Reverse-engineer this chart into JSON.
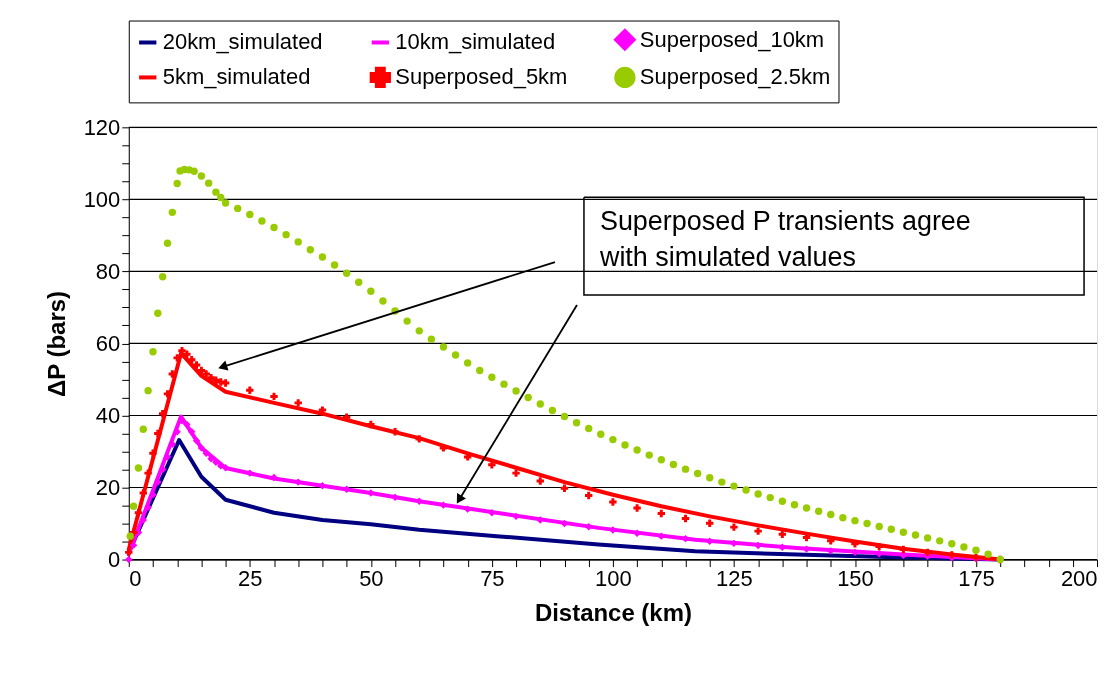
{
  "chart_data": {
    "type": "line",
    "xlabel": "Distance (km)",
    "ylabel": "ΔP (bars)",
    "xlim": [
      0,
      200
    ],
    "ylim": [
      0,
      120
    ],
    "xticks": [
      0,
      {
        "value": 5,
        "label": null
      },
      {
        "value": 10,
        "label": null
      },
      {
        "value": 15,
        "label": null
      },
      {
        "value": 20,
        "label": null
      },
      25,
      {
        "value": 30,
        "label": null
      },
      {
        "value": 35,
        "label": null
      },
      {
        "value": 40,
        "label": null
      },
      {
        "value": 45,
        "label": null
      },
      50,
      {
        "value": 55,
        "label": null
      },
      {
        "value": 60,
        "label": null
      },
      {
        "value": 65,
        "label": null
      },
      {
        "value": 70,
        "label": null
      },
      75,
      {
        "value": 80,
        "label": null
      },
      {
        "value": 85,
        "label": null
      },
      {
        "value": 90,
        "label": null
      },
      {
        "value": 95,
        "label": null
      },
      100,
      {
        "value": 105,
        "label": null
      },
      {
        "value": 110,
        "label": null
      },
      {
        "value": 115,
        "label": null
      },
      {
        "value": 120,
        "label": null
      },
      125,
      {
        "value": 130,
        "label": null
      },
      {
        "value": 135,
        "label": null
      },
      {
        "value": 140,
        "label": null
      },
      {
        "value": 145,
        "label": null
      },
      150,
      {
        "value": 155,
        "label": null
      },
      {
        "value": 160,
        "label": null
      },
      {
        "value": 165,
        "label": null
      },
      {
        "value": 170,
        "label": null
      },
      175,
      {
        "value": 180,
        "label": null
      },
      {
        "value": 185,
        "label": null
      },
      {
        "value": 190,
        "label": null
      },
      {
        "value": 195,
        "label": null
      },
      200
    ],
    "yticks": [
      0,
      {
        "value": 5,
        "label": null
      },
      {
        "value": 10,
        "label": null
      },
      {
        "value": 15,
        "label": null
      },
      20,
      {
        "value": 25,
        "label": null
      },
      {
        "value": 30,
        "label": null
      },
      {
        "value": 35,
        "label": null
      },
      40,
      {
        "value": 45,
        "label": null
      },
      {
        "value": 50,
        "label": null
      },
      {
        "value": 55,
        "label": null
      },
      60,
      {
        "value": 65,
        "label": null
      },
      {
        "value": 70,
        "label": null
      },
      {
        "value": 75,
        "label": null
      },
      80,
      {
        "value": 85,
        "label": null
      },
      {
        "value": 90,
        "label": null
      },
      {
        "value": 95,
        "label": null
      },
      100,
      {
        "value": 105,
        "label": null
      },
      {
        "value": 110,
        "label": null
      },
      {
        "value": 115,
        "label": null
      },
      120
    ],
    "grid": "y",
    "legend": "top",
    "annotations": [
      "Superposed P transients agree\nwith simulated values"
    ],
    "series": [
      {
        "name": "20km_simulated",
        "marker": "none",
        "color": "#000080",
        "x": [
          0,
          10.4,
          15,
          20,
          30,
          40,
          50,
          60,
          76,
          97,
          117,
          138,
          160,
          180
        ],
        "values": [
          2,
          33.2,
          23,
          16.6,
          13,
          11,
          9.8,
          8.3,
          6.5,
          4.2,
          2.3,
          1.4,
          0.6,
          0
        ]
      },
      {
        "name": "10km_simulated",
        "marker": "none",
        "color": "#ff00ff",
        "x": [
          0,
          10.8,
          15,
          20,
          30,
          40,
          50,
          60,
          76,
          97,
          117,
          138,
          160,
          180
        ],
        "values": [
          1.5,
          39.7,
          31,
          25.4,
          22.5,
          20.5,
          18.5,
          16.2,
          13,
          8.8,
          5.5,
          3.2,
          1.4,
          0
        ]
      },
      {
        "name": "Superposed_10km",
        "type": "scatter",
        "marker": "diamond",
        "color": "#ff00ff",
        "x": [
          0,
          1,
          2,
          3,
          4,
          5,
          6,
          7,
          8,
          9,
          10,
          11,
          12,
          13,
          14,
          15,
          16,
          17,
          18,
          19,
          20,
          25,
          30,
          35,
          40,
          45,
          50,
          55,
          60,
          65,
          70,
          75,
          80,
          85,
          90,
          95,
          100,
          105,
          110,
          115,
          120,
          125,
          130,
          135,
          140,
          145,
          150,
          155,
          160,
          165,
          170,
          175,
          180
        ],
        "values": [
          0,
          4,
          7.5,
          11,
          14.5,
          18,
          21.5,
          25,
          28.5,
          32,
          35.5,
          38.5,
          37.5,
          35.5,
          33,
          31,
          29.5,
          28,
          27,
          26,
          25.5,
          24,
          22.8,
          21.5,
          20.5,
          19.5,
          18.5,
          17.3,
          16.2,
          15.1,
          14,
          13,
          12,
          11,
          10,
          9.1,
          8.2,
          7.3,
          6.5,
          5.8,
          5.1,
          4.5,
          3.9,
          3.4,
          2.9,
          2.4,
          2,
          1.6,
          1.2,
          0.9,
          0.5,
          0.2,
          0
        ]
      },
      {
        "name": "5km_simulated",
        "marker": "none",
        "color": "#ff0000",
        "x": [
          0,
          10.8,
          15,
          20,
          30,
          40,
          50,
          60,
          70,
          80,
          90,
          100,
          110,
          120,
          130,
          140,
          150,
          160,
          170,
          180
        ],
        "values": [
          2.8,
          57.3,
          51,
          46.6,
          43.5,
          40.5,
          37,
          33.7,
          29.5,
          25.5,
          21.5,
          18,
          14.8,
          12,
          9.5,
          7.2,
          5,
          3,
          1.4,
          0
        ]
      },
      {
        "name": "Superposed_5km",
        "type": "scatter",
        "marker": "cross",
        "color": "#ff0000",
        "x": [
          0,
          1,
          2,
          3,
          4,
          5,
          6,
          7,
          8,
          9,
          10,
          11,
          12,
          13,
          14,
          15,
          16,
          17,
          18,
          19,
          20,
          25,
          30,
          35,
          40,
          45,
          50,
          55,
          60,
          65,
          70,
          75,
          80,
          85,
          90,
          95,
          100,
          105,
          110,
          115,
          120,
          125,
          130,
          135,
          140,
          145,
          150,
          155,
          160,
          165,
          170,
          175,
          180
        ],
        "values": [
          2,
          7.5,
          13,
          18.5,
          24,
          29.5,
          35,
          40.5,
          46,
          51.5,
          56,
          58,
          57,
          55.5,
          54,
          52.5,
          51.5,
          50.5,
          49.8,
          49.3,
          49,
          47,
          45.3,
          43.5,
          41.5,
          39.5,
          37.5,
          35.5,
          33.5,
          31,
          28.5,
          26.3,
          24,
          21.8,
          19.8,
          17.8,
          16,
          14.3,
          12.8,
          11.4,
          10.1,
          9,
          7.9,
          7,
          6.1,
          5.2,
          4.4,
          3.6,
          2.8,
          2,
          1.3,
          0.6,
          0
        ]
      },
      {
        "name": "Superposed_2.5km",
        "type": "scatter",
        "marker": "circle",
        "color": "#99cc00",
        "x": [
          0.3,
          1,
          2,
          3,
          4,
          5,
          6,
          7,
          8,
          9,
          10,
          10.6,
          11.5,
          12.5,
          13.5,
          15,
          16.5,
          18,
          19,
          20,
          22.5,
          25,
          27.5,
          30,
          32.5,
          35,
          37.5,
          40,
          42.5,
          45,
          47.5,
          50,
          52.5,
          55,
          57.5,
          60,
          62.5,
          65,
          67.5,
          70,
          72.5,
          75,
          77.5,
          80,
          82.5,
          85,
          87.5,
          90,
          92.5,
          95,
          97.5,
          100,
          102.5,
          105,
          107.5,
          110,
          112.5,
          115,
          117.5,
          120,
          122.5,
          125,
          127.5,
          130,
          132.5,
          135,
          137.5,
          140,
          142.5,
          145,
          147.5,
          150,
          152.5,
          155,
          157.5,
          160,
          162.5,
          165,
          167.5,
          170,
          172.5,
          175,
          177.5,
          180
        ],
        "values": [
          6.5,
          14.8,
          25.4,
          36.2,
          46.9,
          57.7,
          68.4,
          78.5,
          87.8,
          96.4,
          104.4,
          107.9,
          108.3,
          108.2,
          107.8,
          106.5,
          104.5,
          102,
          100.5,
          99,
          97.5,
          95.8,
          94,
          92.2,
          90.2,
          88.2,
          86,
          84,
          81.8,
          79.5,
          77,
          74.5,
          71.8,
          69,
          66.2,
          63.5,
          61.2,
          59,
          56.8,
          54.6,
          52.5,
          50.6,
          48.7,
          46.8,
          45,
          43.2,
          41.4,
          39.7,
          38,
          36.4,
          34.8,
          33.3,
          31.8,
          30.4,
          29,
          27.7,
          26.4,
          25.1,
          23.9,
          22.7,
          21.5,
          20.4,
          19.3,
          18.2,
          17.2,
          16.2,
          15.2,
          14.3,
          13.4,
          12.5,
          11.6,
          10.8,
          10,
          9.2,
          8.4,
          7.6,
          6.8,
          6,
          5.2,
          4.4,
          3.5,
          2.6,
          1.5,
          0
        ]
      }
    ]
  }
}
